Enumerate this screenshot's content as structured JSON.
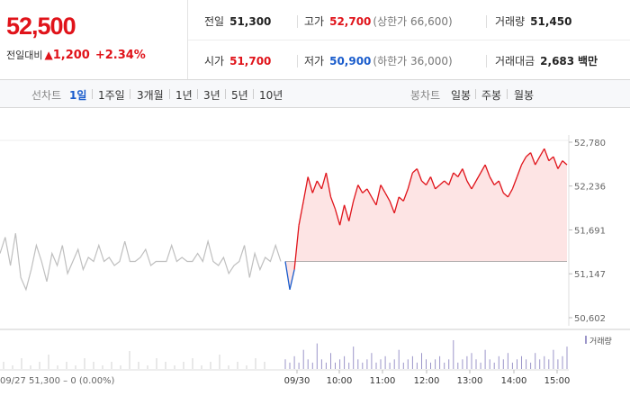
{
  "summary": {
    "current_price": "52,500",
    "change_label": "전일대비",
    "change_arrow": "▲",
    "change_value": "1,200",
    "change_percent": "+2.34%",
    "prev_close_label": "전일",
    "prev_close": "51,300",
    "open_label": "시가",
    "open": "51,700",
    "high_label": "고가",
    "high": "52,700",
    "high_limit": "(상한가 66,600)",
    "low_label": "저가",
    "low": "50,900",
    "low_limit": "(하한가 36,000)",
    "volume_label": "거래량",
    "volume": "51,450",
    "amount_label": "거래대금",
    "amount": "2,683",
    "amount_unit": "백만"
  },
  "tabs": {
    "line_label": "선차트",
    "line_tabs": [
      "1일",
      "1주일",
      "3개월",
      "1년",
      "3년",
      "5년",
      "10년"
    ],
    "selected": "1일",
    "candle_label": "봉차트",
    "candle_tabs": [
      "일봉",
      "주봉",
      "월봉"
    ]
  },
  "colors": {
    "up": "#e0131a",
    "down": "#1a5ccc",
    "prev_day": "#bfbfbf",
    "fill": "#fde4e4",
    "volume": "#9b95c9"
  },
  "chart_data": {
    "type": "line",
    "ylim": [
      50602,
      52780
    ],
    "ytick_labels": [
      "52,780",
      "52,236",
      "51,691",
      "51,147",
      "50,602"
    ],
    "yticks": [
      52780,
      52236,
      51691,
      51147,
      50602
    ],
    "baseline": 51300,
    "xtick_labels": [
      "09/30",
      "10:00",
      "11:00",
      "12:00",
      "13:00",
      "14:00",
      "15:00"
    ],
    "prev_day_note": "09/27  51,300 – 0 (0.00%)",
    "volume_legend": "거래량",
    "prev_day_series": [
      51400,
      51600,
      51250,
      51650,
      51100,
      50950,
      51200,
      51500,
      51300,
      51050,
      51400,
      51250,
      51500,
      51150,
      51300,
      51450,
      51200,
      51350,
      51300,
      51500,
      51300,
      51350,
      51250,
      51300,
      51550,
      51300,
      51300,
      51350,
      51450,
      51250,
      51300,
      51300,
      51300,
      51500,
      51300,
      51350,
      51300,
      51300,
      51400,
      51300,
      51550,
      51300,
      51250,
      51350,
      51150,
      51250,
      51300,
      51500,
      51100,
      51400,
      51200,
      51350,
      51300,
      51500,
      51300
    ],
    "series": [
      {
        "name": "09/30",
        "values": [
          51300,
          50950,
          51200,
          51750,
          52050,
          52350,
          52150,
          52300,
          52200,
          52400,
          52100,
          51950,
          51750,
          52000,
          51800,
          52050,
          52250,
          52150,
          52200,
          52100,
          52000,
          52250,
          52150,
          52050,
          51900,
          52100,
          52050,
          52200,
          52400,
          52450,
          52300,
          52250,
          52350,
          52200,
          52250,
          52300,
          52250,
          52400,
          52350,
          52450,
          52300,
          52200,
          52300,
          52400,
          52500,
          52350,
          52250,
          52300,
          52150,
          52100,
          52200,
          52350,
          52500,
          52600,
          52650,
          52500,
          52600,
          52700,
          52550,
          52600,
          52450,
          52550,
          52500
        ]
      }
    ],
    "volume": [
      3,
      2,
      4,
      2,
      6,
      3,
      2,
      8,
      3,
      2,
      5,
      2,
      3,
      4,
      2,
      7,
      3,
      2,
      3,
      5,
      2,
      3,
      4,
      2,
      3,
      6,
      2,
      3,
      4,
      2,
      5,
      3,
      2,
      3,
      4,
      2,
      3,
      9,
      2,
      3,
      4,
      5,
      3,
      2,
      6,
      3,
      2,
      4,
      3,
      5,
      2,
      3,
      4,
      3,
      2,
      5,
      3,
      4,
      3,
      6,
      3,
      4,
      7
    ]
  }
}
